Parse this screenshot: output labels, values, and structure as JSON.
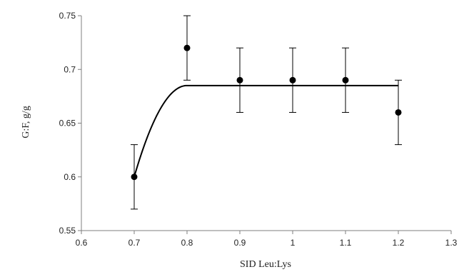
{
  "chart_data": {
    "type": "scatter",
    "xlabel": "SID Leu:Lys",
    "ylabel": "G:F, g/g",
    "xlim": [
      0.6,
      1.3
    ],
    "ylim": [
      0.55,
      0.75
    ],
    "x_ticks": [
      0.6,
      0.7,
      0.8,
      0.9,
      1,
      1.1,
      1.2,
      1.3
    ],
    "x_tick_labels": [
      "0.6",
      "0.7",
      "0.8",
      "0.9",
      "1",
      "1.1",
      "1.2",
      "1.3"
    ],
    "y_ticks": [
      0.55,
      0.6,
      0.65,
      0.7,
      0.75
    ],
    "y_tick_labels": [
      "0.55",
      "0.6",
      "0.65",
      "0.7",
      "0.75"
    ],
    "grid": false,
    "series": [
      {
        "x": [
          0.7,
          0.8,
          0.9,
          1.0,
          1.1,
          1.2
        ],
        "values": [
          0.6,
          0.72,
          0.69,
          0.69,
          0.69,
          0.66
        ],
        "error": [
          0.03,
          0.03,
          0.03,
          0.03,
          0.03,
          0.03
        ]
      }
    ],
    "fit": {
      "type": "quadratic-plateau",
      "x_start": 0.7,
      "y_start": 0.6,
      "breakpoint": 0.8,
      "plateau": 0.685,
      "x_end": 1.2
    }
  }
}
